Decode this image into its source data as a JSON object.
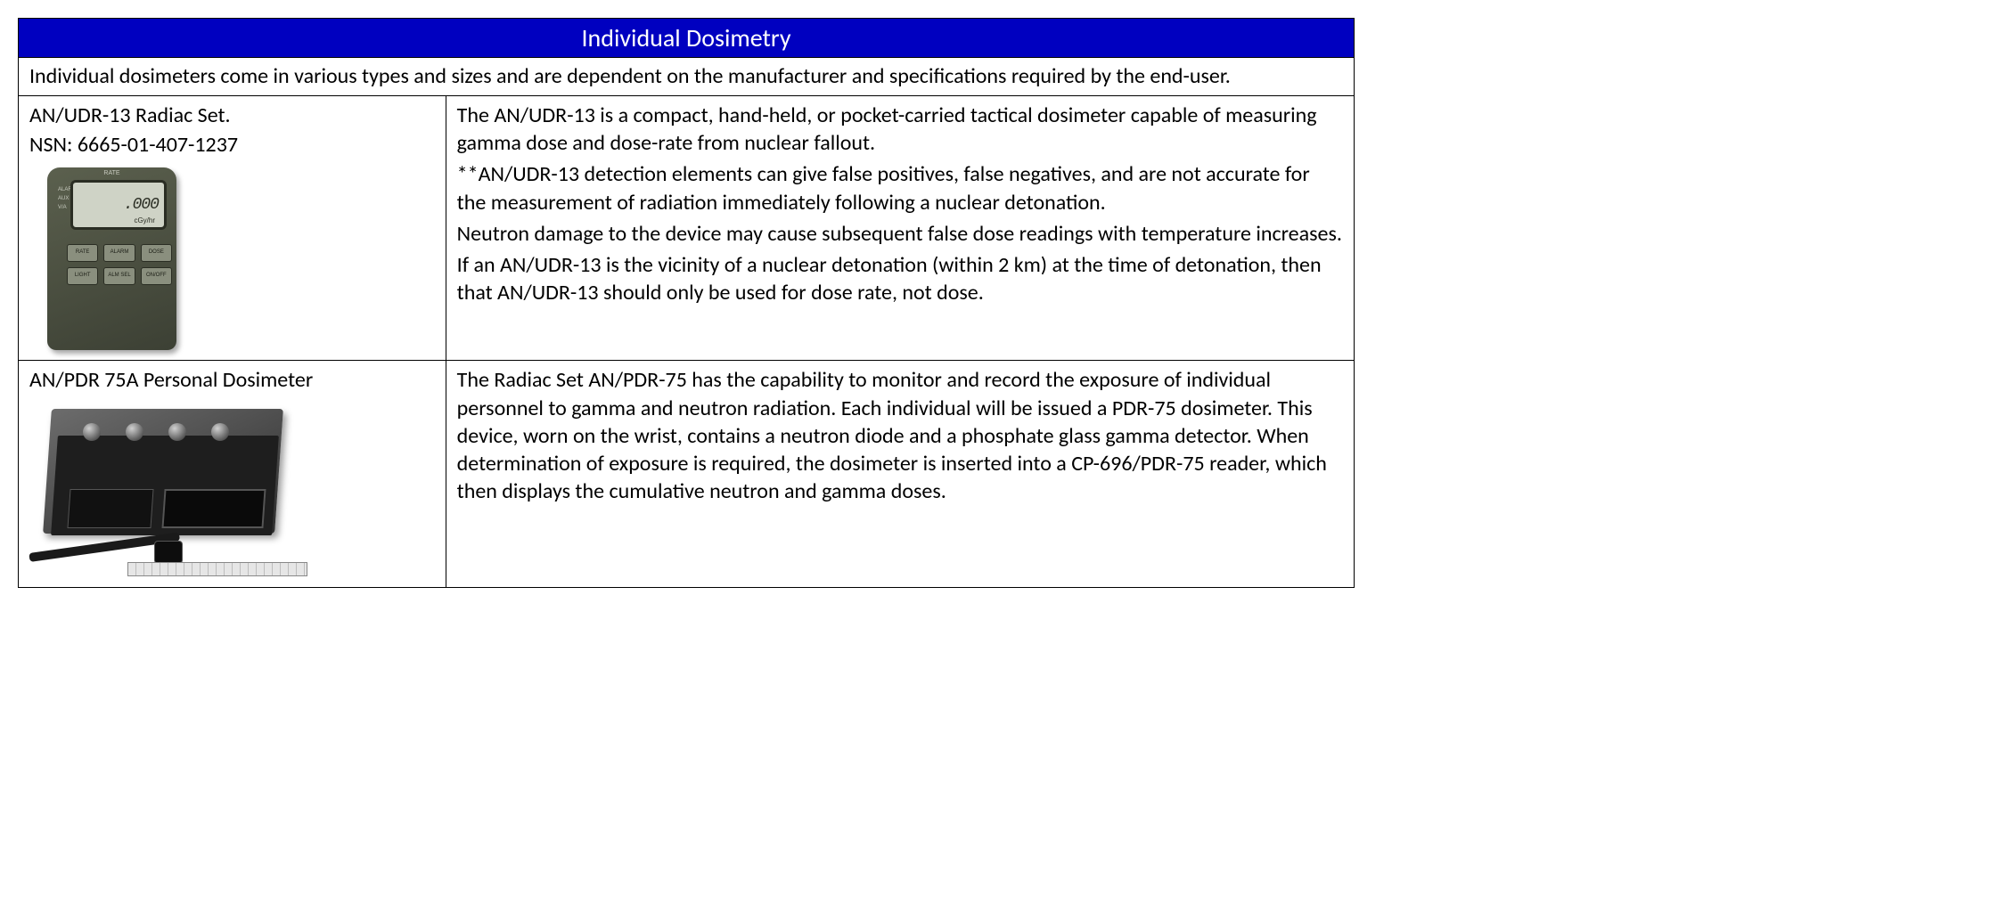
{
  "colors": {
    "header_bg": "#0000c0",
    "header_text": "#ffffff",
    "border": "#000000",
    "body_text": "#000000",
    "background": "#ffffff"
  },
  "typography": {
    "font_family": "Calibri",
    "header_fontsize_pt": 21,
    "body_fontsize_pt": 18
  },
  "layout": {
    "left_col_width_pct": 32,
    "right_col_width_pct": 68
  },
  "table": {
    "header": "Individual Dosimetry",
    "intro": "Individual dosimeters come in various types and sizes and are dependent on the manufacturer and specifications required by the end-user.",
    "rows": [
      {
        "title": "AN/UDR-13 Radiac Set.",
        "nsn": "NSN: 6665-01-407-1237",
        "image_alt": "AN/UDR-13 handheld dosimeter device",
        "image_display": {
          "readout": ".000",
          "unit": "cGy/hr",
          "top_label": "RATE",
          "side_labels": [
            "ALARM",
            "AUX",
            "V/A"
          ],
          "buttons": [
            "RATE",
            "ALARM",
            "DOSE",
            "LIGHT",
            "ALM SEL",
            "ON/OFF"
          ]
        },
        "description": [
          "The AN/UDR-13 is a compact, hand-held, or pocket-carried tactical dosimeter capable of measuring gamma dose and dose-rate from nuclear fallout.",
          "**AN/UDR-13 detection elements can give false positives, false negatives, and are not accurate for the measurement of radiation immediately following a nuclear detonation.",
          "Neutron damage to the device may cause subsequent false dose readings with temperature increases.",
          "If an AN/UDR-13 is the vicinity of a nuclear detonation (within 2 km) at the time of detonation, then that AN/UDR-13 should only be used for dose rate, not dose."
        ]
      },
      {
        "title": "AN/PDR 75A Personal Dosimeter",
        "nsn": "",
        "image_alt": "AN/PDR-75 reader unit with wrist dosimeter and ruler",
        "description": [
          "The Radiac Set AN/PDR-75 has the capability to monitor and record the exposure of individual personnel to gamma and neutron radiation. Each individual will be issued a PDR-75 dosimeter. This device, worn on the wrist, contains a neutron diode and a phosphate glass gamma detector. When determination of exposure is required, the dosimeter is inserted into a CP-696/PDR-75 reader, which then displays the cumulative neutron and gamma doses."
        ]
      }
    ]
  }
}
